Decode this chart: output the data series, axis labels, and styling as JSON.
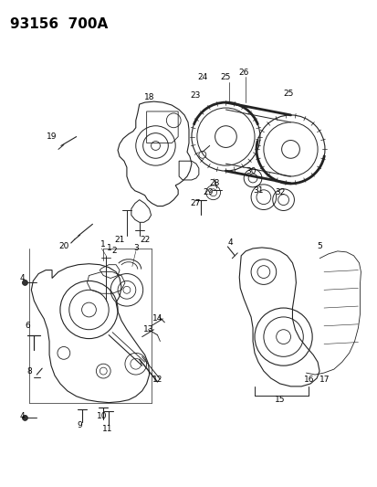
{
  "title": "93156  700A",
  "bg_color": "#ffffff",
  "title_fontsize": 11,
  "title_fontweight": "bold",
  "label_fontsize": 6.5
}
